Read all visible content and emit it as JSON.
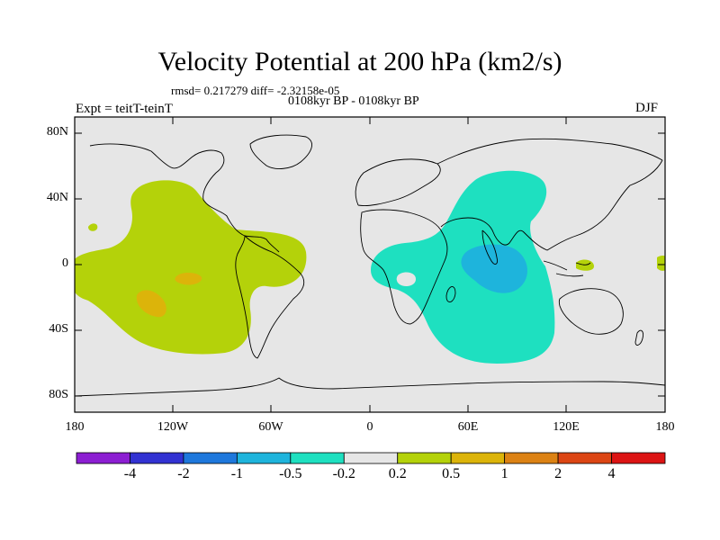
{
  "title": "Velocity Potential at 200 hPa (km2/s)",
  "stats_line": "rmsd= 0.217279  diff= -2.32158e-05",
  "subtitle": "0108kyr BP - 0108kyr BP",
  "experiment": "Expt = teitT-teinT",
  "season": "DJF",
  "axes": {
    "y_ticks": [
      "80N",
      "40N",
      "0",
      "40S",
      "80S"
    ],
    "x_ticks": [
      "180",
      "120W",
      "60W",
      "0",
      "60E",
      "120E",
      "180"
    ]
  },
  "colorbar": {
    "colors": [
      "#8c1ed2",
      "#3232d2",
      "#1e78dc",
      "#1eb4dc",
      "#1ee0c0",
      "#e6e6e6",
      "#b4d20a",
      "#dcb40a",
      "#dc8214",
      "#dc4614",
      "#dc1414"
    ],
    "labels": [
      "-4",
      "-2",
      "-1",
      "-0.5",
      "-0.2",
      "0.2",
      "0.5",
      "1",
      "2",
      "4"
    ]
  },
  "colors": {
    "background": "#e6e6e6",
    "positive_weak": "#b4d20a",
    "positive_mid": "#dcb40a",
    "negative_weak": "#1ee0c0",
    "negative_mid": "#1eb4dc"
  }
}
